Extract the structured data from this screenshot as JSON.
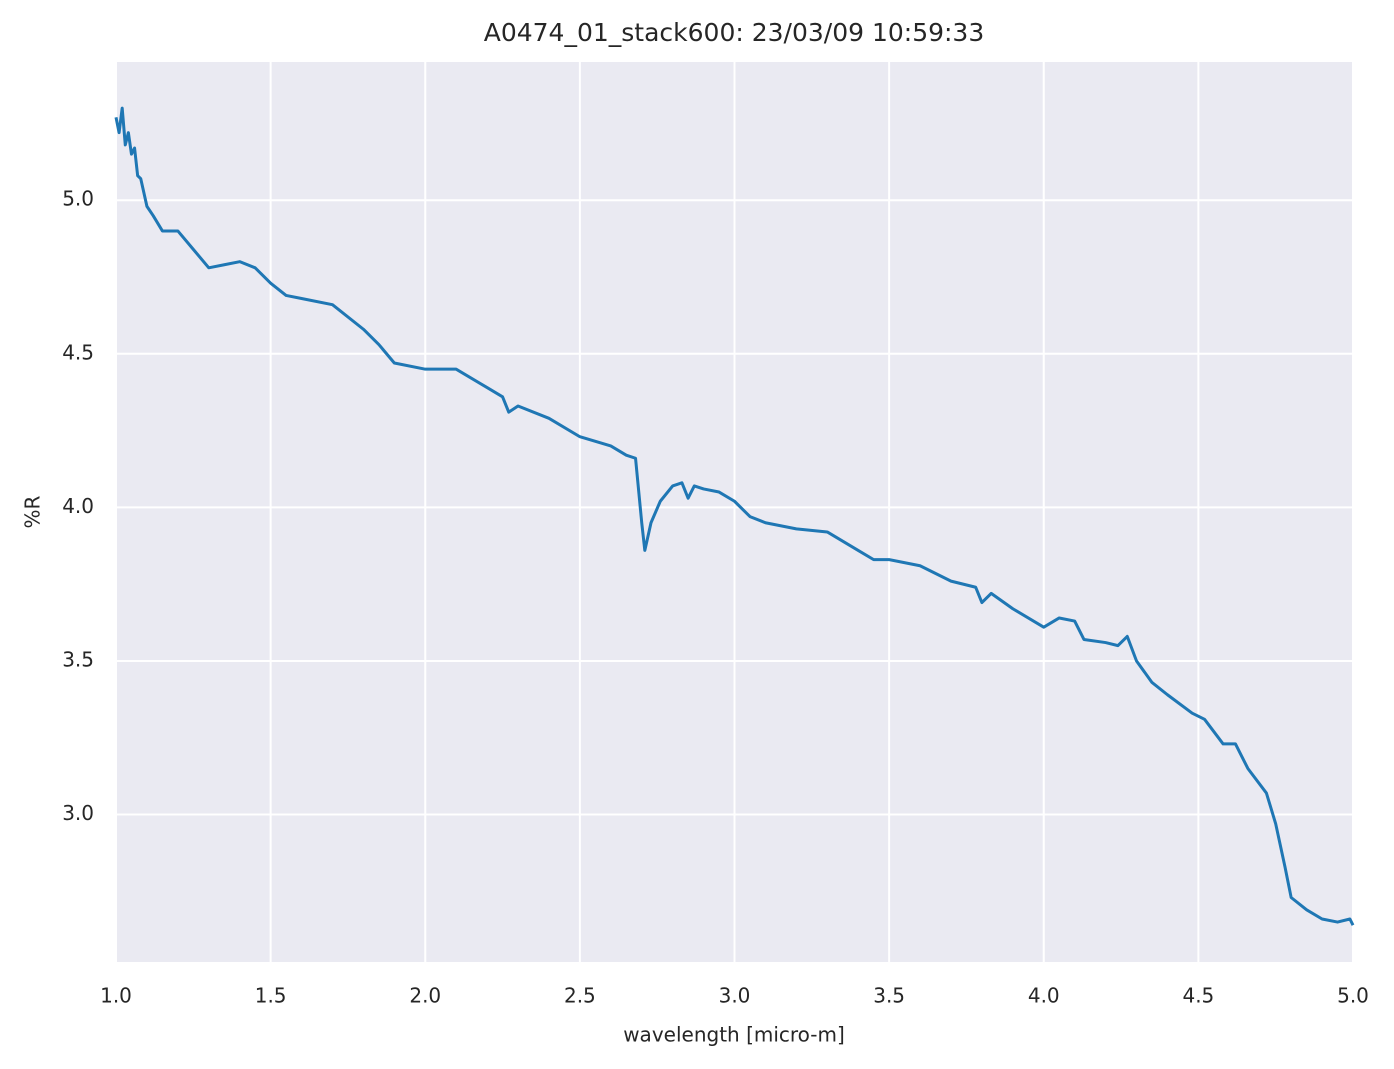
{
  "chart_data": {
    "type": "line",
    "title": "A0474_01_stack600:  23/03/09 10:59:33",
    "xlabel": "wavelength [micro-m]",
    "ylabel": "%R",
    "x": [
      1.0,
      1.01,
      1.02,
      1.03,
      1.04,
      1.05,
      1.06,
      1.07,
      1.08,
      1.1,
      1.12,
      1.15,
      1.2,
      1.25,
      1.3,
      1.35,
      1.4,
      1.45,
      1.5,
      1.55,
      1.6,
      1.7,
      1.8,
      1.85,
      1.9,
      2.0,
      2.1,
      2.2,
      2.25,
      2.27,
      2.3,
      2.4,
      2.5,
      2.6,
      2.65,
      2.68,
      2.7,
      2.71,
      2.73,
      2.76,
      2.8,
      2.83,
      2.85,
      2.87,
      2.9,
      2.95,
      3.0,
      3.05,
      3.1,
      3.2,
      3.3,
      3.4,
      3.45,
      3.5,
      3.6,
      3.7,
      3.78,
      3.8,
      3.83,
      3.9,
      4.0,
      4.05,
      4.1,
      4.13,
      4.2,
      4.24,
      4.27,
      4.3,
      4.35,
      4.4,
      4.48,
      4.52,
      4.58,
      4.62,
      4.66,
      4.72,
      4.75,
      4.78,
      4.8,
      4.85,
      4.9,
      4.95,
      4.99,
      5.0
    ],
    "values": [
      5.27,
      5.22,
      5.3,
      5.18,
      5.22,
      5.15,
      5.17,
      5.08,
      5.07,
      4.98,
      4.95,
      4.9,
      4.9,
      4.84,
      4.78,
      4.79,
      4.8,
      4.78,
      4.73,
      4.69,
      4.68,
      4.66,
      4.58,
      4.53,
      4.47,
      4.45,
      4.45,
      4.39,
      4.36,
      4.31,
      4.33,
      4.29,
      4.23,
      4.2,
      4.17,
      4.16,
      3.95,
      3.86,
      3.95,
      4.02,
      4.07,
      4.08,
      4.03,
      4.07,
      4.06,
      4.05,
      4.02,
      3.97,
      3.95,
      3.93,
      3.92,
      3.86,
      3.83,
      3.83,
      3.81,
      3.76,
      3.74,
      3.69,
      3.72,
      3.67,
      3.61,
      3.64,
      3.63,
      3.57,
      3.56,
      3.55,
      3.58,
      3.5,
      3.43,
      3.39,
      3.33,
      3.31,
      3.23,
      3.23,
      3.15,
      3.07,
      2.97,
      2.83,
      2.73,
      2.69,
      2.66,
      2.65,
      2.66,
      2.64
    ],
    "color": "#1f77b4",
    "xlim": [
      1.0,
      5.0
    ],
    "xticks": [
      {
        "value": 1,
        "label": "1.0"
      },
      1.5,
      {
        "value": 2,
        "label": "2.0"
      },
      2.5,
      {
        "value": 3,
        "label": "3.0"
      },
      3.5,
      {
        "value": 4,
        "label": "4.0"
      },
      4.5,
      {
        "value": 5,
        "label": "5.0"
      }
    ],
    "ylim": [
      2.52,
      5.45
    ],
    "yticks": [
      {
        "value": 3,
        "label": "3.0"
      },
      3.5,
      {
        "value": 4,
        "label": "4.0"
      },
      4.5,
      {
        "value": 5,
        "label": "5.0"
      }
    ],
    "grid": true
  }
}
